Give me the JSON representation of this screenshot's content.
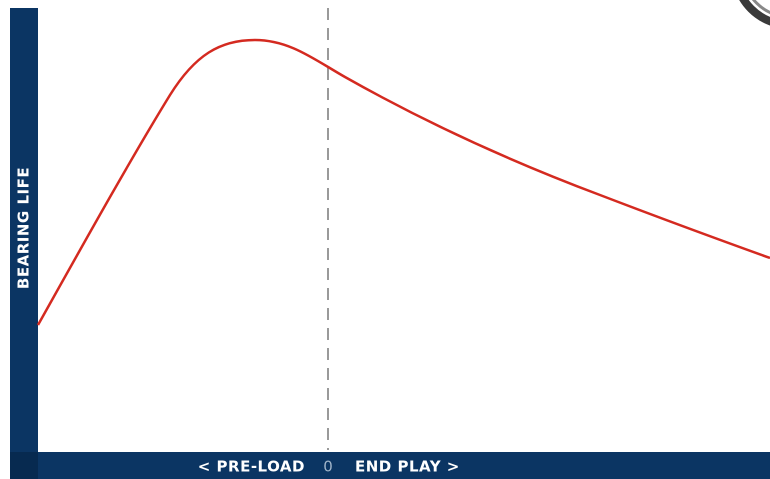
{
  "y_axis_label": "BEARING LIFE",
  "x_axis": {
    "left_label": "< PRE-LOAD",
    "zero_label": "0",
    "right_label": "END PLAY >"
  }
}
